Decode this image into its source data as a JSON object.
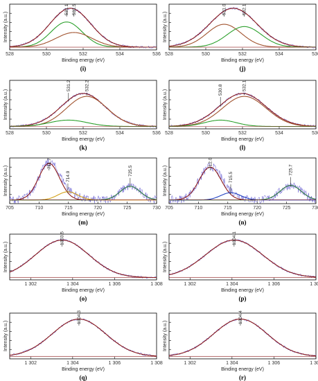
{
  "chart_data": [
    {
      "panel": "(i)",
      "type": "line",
      "xlabel": "Binding energy (eV)",
      "ylabel": "Intensity (a.u.)",
      "xlim": [
        528,
        536
      ],
      "xticks": [
        "528",
        "530",
        "532",
        "534",
        "536"
      ],
      "peak_labels": [
        {
          "x": 531.1,
          "text": "531.1"
        },
        {
          "x": 531.5,
          "text": "531.5"
        }
      ],
      "series": [
        {
          "component": "envelope",
          "color": "#8b1a1a",
          "center": 531.3,
          "fwhm": 2.6,
          "height": 0.85,
          "baseline": 0.06
        },
        {
          "component": "peak",
          "color": "#2ca02c",
          "center": 531.1,
          "fwhm": 2.0,
          "height": 0.55,
          "baseline": 0.06
        },
        {
          "component": "peak",
          "color": "#a0522d",
          "center": 531.5,
          "fwhm": 2.3,
          "height": 0.32,
          "baseline": 0.06
        }
      ],
      "noise": "light"
    },
    {
      "panel": "(j)",
      "type": "line",
      "xlabel": "Binding energy (eV)",
      "ylabel": "Intensity (a.u.)",
      "xlim": [
        528,
        536
      ],
      "xticks": [
        "528",
        "530",
        "532",
        "534",
        "536"
      ],
      "peak_labels": [
        {
          "x": 531.0,
          "text": "531.0"
        },
        {
          "x": 532.1,
          "text": "532.1"
        }
      ],
      "series": [
        {
          "component": "envelope",
          "color": "#8b1a1a",
          "center": 531.5,
          "fwhm": 3.0,
          "height": 0.85,
          "baseline": 0.06
        },
        {
          "component": "peak",
          "color": "#a0522d",
          "center": 531.0,
          "fwhm": 2.2,
          "height": 0.5,
          "baseline": 0.06
        },
        {
          "component": "peak",
          "color": "#2ca02c",
          "center": 532.1,
          "fwhm": 2.2,
          "height": 0.45,
          "baseline": 0.06
        }
      ],
      "noise": "light"
    },
    {
      "panel": "(k)",
      "type": "line",
      "xlabel": "Binding energy (eV)",
      "ylabel": "Intensity (a.u.)",
      "xlim": [
        528,
        536
      ],
      "xticks": [
        "528",
        "530",
        "532",
        "534",
        "536"
      ],
      "peak_labels": [
        {
          "x": 531.2,
          "text": "531.2"
        },
        {
          "x": 532.2,
          "text": "532.2"
        }
      ],
      "series": [
        {
          "component": "envelope",
          "color": "#8b1a1a",
          "center": 532.0,
          "fwhm": 2.8,
          "height": 0.68,
          "baseline": 0.05
        },
        {
          "component": "peak",
          "color": "#a0522d",
          "center": 532.2,
          "fwhm": 2.6,
          "height": 0.62,
          "baseline": 0.05
        },
        {
          "component": "peak",
          "color": "#2ca02c",
          "center": 531.2,
          "fwhm": 2.4,
          "height": 0.13,
          "baseline": 0.05
        }
      ],
      "noise": "light"
    },
    {
      "panel": "(l)",
      "type": "line",
      "xlabel": "Binding energy (eV)",
      "ylabel": "Intensity (a.u.)",
      "xlim": [
        528,
        536
      ],
      "xticks": [
        "528",
        "530",
        "532",
        "534",
        "536"
      ],
      "peak_labels": [
        {
          "x": 530.8,
          "text": "530.8"
        },
        {
          "x": 532.1,
          "text": "532.1"
        }
      ],
      "series": [
        {
          "component": "envelope",
          "color": "#8b1a1a",
          "center": 532.0,
          "fwhm": 3.0,
          "height": 0.68,
          "baseline": 0.05
        },
        {
          "component": "peak",
          "color": "#a0522d",
          "center": 532.1,
          "fwhm": 2.8,
          "height": 0.62,
          "baseline": 0.05
        },
        {
          "component": "peak",
          "color": "#2ca02c",
          "center": 530.8,
          "fwhm": 2.0,
          "height": 0.13,
          "baseline": 0.05
        }
      ],
      "noise": "light"
    },
    {
      "panel": "(m)",
      "type": "line",
      "xlabel": "Binding energy (eV)",
      "ylabel": "Intensity (a.u.)",
      "xlim": [
        705,
        730
      ],
      "xticks": [
        "705",
        "710",
        "715",
        "720",
        "725",
        "730"
      ],
      "peak_labels": [
        {
          "x": 711.7,
          "text": "711.7"
        },
        {
          "x": 714.9,
          "text": "714.9"
        },
        {
          "x": 725.5,
          "text": "725.5"
        }
      ],
      "series": [
        {
          "component": "envelope",
          "color": "#8b1a1a",
          "center": 711.7,
          "fwhm": 4.2,
          "height": 0.8,
          "baseline": 0.08
        },
        {
          "component": "peak",
          "color": "#d4a017",
          "center": 714.9,
          "fwhm": 4.0,
          "height": 0.18,
          "baseline": 0.08
        },
        {
          "component": "peak",
          "color": "#2e8b57",
          "center": 725.5,
          "fwhm": 4.0,
          "height": 0.3,
          "baseline": 0.08
        }
      ],
      "noise": "heavy"
    },
    {
      "panel": "(n)",
      "type": "line",
      "xlabel": "Binding energy (eV)",
      "ylabel": "Intensity (a.u.)",
      "xlim": [
        705,
        730
      ],
      "xticks": [
        "705",
        "710",
        "715",
        "720",
        "725",
        "730"
      ],
      "peak_labels": [
        {
          "x": 712.0,
          "text": "712.0"
        },
        {
          "x": 715.5,
          "text": "715.5"
        },
        {
          "x": 725.7,
          "text": "725.7"
        }
      ],
      "series": [
        {
          "component": "envelope",
          "color": "#8b1a1a",
          "center": 712.0,
          "fwhm": 4.4,
          "height": 0.72,
          "baseline": 0.08
        },
        {
          "component": "peak",
          "color": "#1f3fbf",
          "center": 715.5,
          "fwhm": 4.0,
          "height": 0.16,
          "baseline": 0.08
        },
        {
          "component": "peak",
          "color": "#2e8b57",
          "center": 725.7,
          "fwhm": 4.2,
          "height": 0.32,
          "baseline": 0.08
        }
      ],
      "noise": "heavy"
    },
    {
      "panel": "(o)",
      "type": "line",
      "xlabel": "Binding energy (eV)",
      "ylabel": "Intensity (a.u.)",
      "xlim": [
        1301,
        1308
      ],
      "xticks": [
        "1 302",
        "1 304",
        "1 306",
        "1 308"
      ],
      "peak_labels": [
        {
          "x": 1303.5,
          "text": "1303.5"
        }
      ],
      "series": [
        {
          "component": "envelope",
          "color": "#8b1a1a",
          "center": 1303.5,
          "fwhm": 3.0,
          "height": 0.82,
          "baseline": 0.05
        }
      ],
      "noise": "light"
    },
    {
      "panel": "(p)",
      "type": "line",
      "xlabel": "Binding energy (eV)",
      "ylabel": "Intensity (a.u.)",
      "xlim": [
        1301,
        1308
      ],
      "xticks": [
        "1 302",
        "1 304",
        "1 306",
        "1 308"
      ],
      "peak_labels": [
        {
          "x": 1304.1,
          "text": "1304.1"
        }
      ],
      "series": [
        {
          "component": "envelope",
          "color": "#8b1a1a",
          "center": 1304.1,
          "fwhm": 3.2,
          "height": 0.82,
          "baseline": 0.05
        }
      ],
      "noise": "light"
    },
    {
      "panel": "(q)",
      "type": "line",
      "xlabel": "Binding energy (eV)",
      "ylabel": "Intensity (a.u.)",
      "xlim": [
        1301,
        1308
      ],
      "xticks": [
        "1 302",
        "1 304",
        "1 306",
        "1 308"
      ],
      "peak_labels": [
        {
          "x": 1304.3,
          "text": "1304.3"
        }
      ],
      "series": [
        {
          "component": "envelope",
          "color": "#8b1a1a",
          "center": 1304.3,
          "fwhm": 3.0,
          "height": 0.82,
          "baseline": 0.05
        }
      ],
      "noise": "light"
    },
    {
      "panel": "(r)",
      "type": "line",
      "xlabel": "Binding energy (eV)",
      "ylabel": "Intensity (a.u.)",
      "xlim": [
        1301,
        1308
      ],
      "xticks": [
        "1 302",
        "1 304",
        "1 306",
        "1 308"
      ],
      "peak_labels": [
        {
          "x": 1304.4,
          "text": "1304.4"
        }
      ],
      "series": [
        {
          "component": "envelope",
          "color": "#8b1a1a",
          "center": 1304.4,
          "fwhm": 3.0,
          "height": 0.82,
          "baseline": 0.05
        }
      ],
      "noise": "light"
    }
  ],
  "colors": {
    "raw_spectrum": "#5a4fcf",
    "raw_spectrum_alt": "#e87fd0",
    "residual_cyan": "#7fd8e8"
  }
}
